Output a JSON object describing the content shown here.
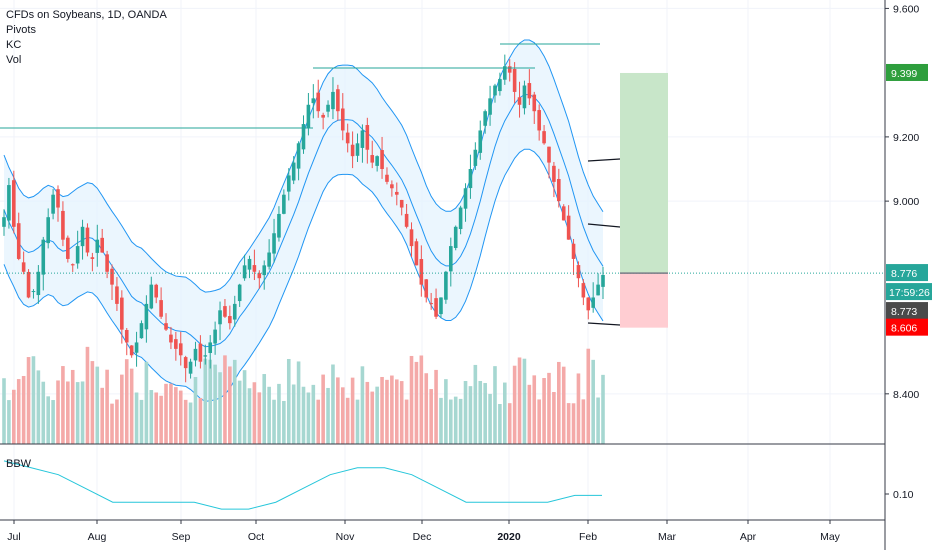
{
  "legend": {
    "title": "CFDs on Soybeans, 1D, OANDA",
    "indicators": [
      "Pivots",
      "KC",
      "Vol"
    ],
    "bbw": "BBW"
  },
  "colors": {
    "up": "#26a69a",
    "down": "#ef5350",
    "vol_up": "#a6d7d1",
    "vol_down": "#f4a9a8",
    "kc_line": "#2196f3",
    "kc_fill": "#e3f2fd",
    "pivot": "#26a69a",
    "target": "#c8e6c9",
    "stop": "#ffcdd2",
    "current_tag": "#26a69a",
    "sl_tag": "#ff0000",
    "tp_tag": "#2e9e3d",
    "time_tag": "#4a4a4a"
  },
  "chart_data": {
    "type": "candlestick",
    "title": "CFDs on Soybeans, 1D, OANDA",
    "x_ticks": [
      "Jul",
      "Aug",
      "Sep",
      "Oct",
      "Nov",
      "Dec",
      "2020",
      "Feb",
      "Mar",
      "Apr",
      "May"
    ],
    "y_ticks": [
      "9.600",
      "9.200",
      "9.000",
      "8.400"
    ],
    "price_bottom_tick": "0.10",
    "ylim": [
      8.25,
      9.62
    ],
    "last_price": "8.776",
    "countdown": "17:59:26",
    "bid_price": "8.773",
    "take_profit": "9.399",
    "stop_loss": "8.606",
    "candles_close": [
      8.95,
      9.05,
      8.92,
      8.82,
      8.78,
      8.7,
      8.72,
      8.78,
      8.88,
      8.95,
      9.02,
      8.98,
      8.88,
      8.82,
      8.8,
      8.86,
      8.92,
      8.84,
      8.82,
      8.88,
      8.84,
      8.78,
      8.74,
      8.68,
      8.6,
      8.56,
      8.52,
      8.56,
      8.62,
      8.68,
      8.74,
      8.7,
      8.64,
      8.6,
      8.56,
      8.54,
      8.52,
      8.48,
      8.5,
      8.54,
      8.5,
      8.52,
      8.56,
      8.6,
      8.66,
      8.64,
      8.62,
      8.68,
      8.74,
      8.8,
      8.82,
      8.78,
      8.76,
      8.8,
      8.84,
      8.9,
      8.96,
      9.02,
      9.08,
      9.12,
      9.18,
      9.24,
      9.3,
      9.32,
      9.28,
      9.26,
      9.3,
      9.34,
      9.28,
      9.22,
      9.18,
      9.14,
      9.18,
      9.22,
      9.16,
      9.12,
      9.14,
      9.1,
      9.06,
      9.04,
      9.02,
      8.98,
      8.92,
      8.86,
      8.8,
      8.74,
      8.7,
      8.68,
      8.64,
      8.7,
      8.78,
      8.86,
      8.92,
      8.98,
      9.04,
      9.1,
      9.16,
      9.22,
      9.28,
      9.32,
      9.36,
      9.38,
      9.42,
      9.4,
      9.34,
      9.3,
      9.36,
      9.32,
      9.28,
      9.22,
      9.18,
      9.12,
      9.06,
      9.0,
      8.94,
      8.88,
      8.82,
      8.76,
      8.7,
      8.66,
      8.7,
      8.74,
      8.77
    ],
    "bbw_values": [
      0.16,
      0.15,
      0.14,
      0.12,
      0.1,
      0.1,
      0.1,
      0.1,
      0.09,
      0.09,
      0.1,
      0.12,
      0.14,
      0.15,
      0.15,
      0.14,
      0.12,
      0.1,
      0.1,
      0.1,
      0.1,
      0.11,
      0.11
    ]
  }
}
